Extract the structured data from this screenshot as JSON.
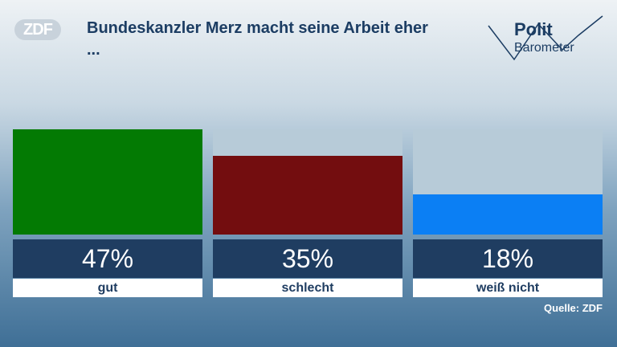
{
  "chart_data": {
    "type": "bar",
    "title": "Bundeskanzler Merz macht seine Arbeit eher ...",
    "categories": [
      "gut",
      "schlecht",
      "weiß nicht"
    ],
    "values": [
      47,
      35,
      18
    ],
    "value_labels": [
      "47%",
      "35%",
      "18%"
    ],
    "colors": [
      "#037a03",
      "#730d0f",
      "#0b7ff4"
    ],
    "source": "Quelle: ZDF",
    "logo": "ZDF",
    "brand": [
      "Polit",
      "Barometer"
    ]
  }
}
